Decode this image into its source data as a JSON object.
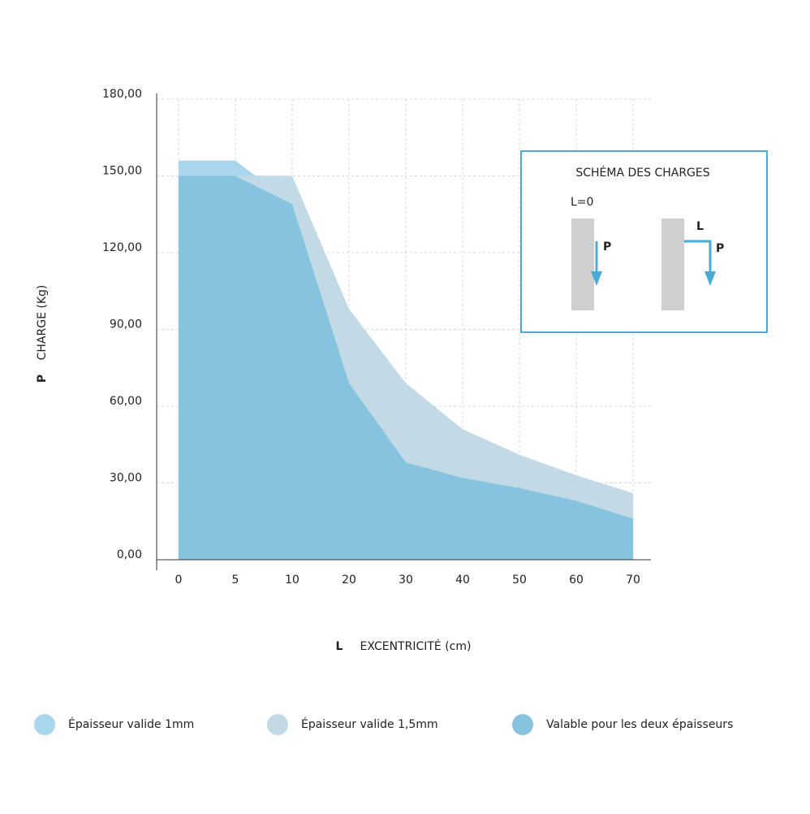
{
  "chart_data": {
    "type": "area",
    "y_label_symbol": "P",
    "y_label": "CHARGE (Kg)",
    "x_label_symbol": "L",
    "x_label": "EXCENTRICITÉ (cm)",
    "categories": [
      "0",
      "5",
      "10",
      "20",
      "30",
      "40",
      "50",
      "60",
      "70"
    ],
    "series": [
      {
        "name": "Épaisseur valide 1mm",
        "color": "#a9d6ec",
        "values": [
          156,
          156,
          139,
          69,
          38,
          32,
          28,
          23,
          16
        ]
      },
      {
        "name": "Épaisseur valide 1,5mm",
        "color": "#c1dae6",
        "values": [
          150,
          150,
          150,
          98,
          69,
          51,
          41,
          33,
          26
        ]
      },
      {
        "name": "Valable pour les deux épaisseurs",
        "color": "#86c3df",
        "values": [
          150,
          150,
          139,
          69,
          38,
          32,
          28,
          23,
          16
        ]
      }
    ],
    "ylim": [
      0,
      180
    ],
    "yticks": [
      {
        "value": 0,
        "label": "0,00"
      },
      {
        "value": 30,
        "label": "30,00"
      },
      {
        "value": 60,
        "label": "60,00"
      },
      {
        "value": 90,
        "label": "90,00"
      },
      {
        "value": 120,
        "label": "120,00"
      },
      {
        "value": 150,
        "label": "150,00"
      },
      {
        "value": 180,
        "label": "180,00"
      }
    ],
    "grid": true,
    "legend": "bottom",
    "schema": {
      "title": "SCHÉMA DES CHARGES",
      "left_label": "L=0",
      "left_force": "P",
      "right_label": "L",
      "right_force": "P"
    }
  }
}
